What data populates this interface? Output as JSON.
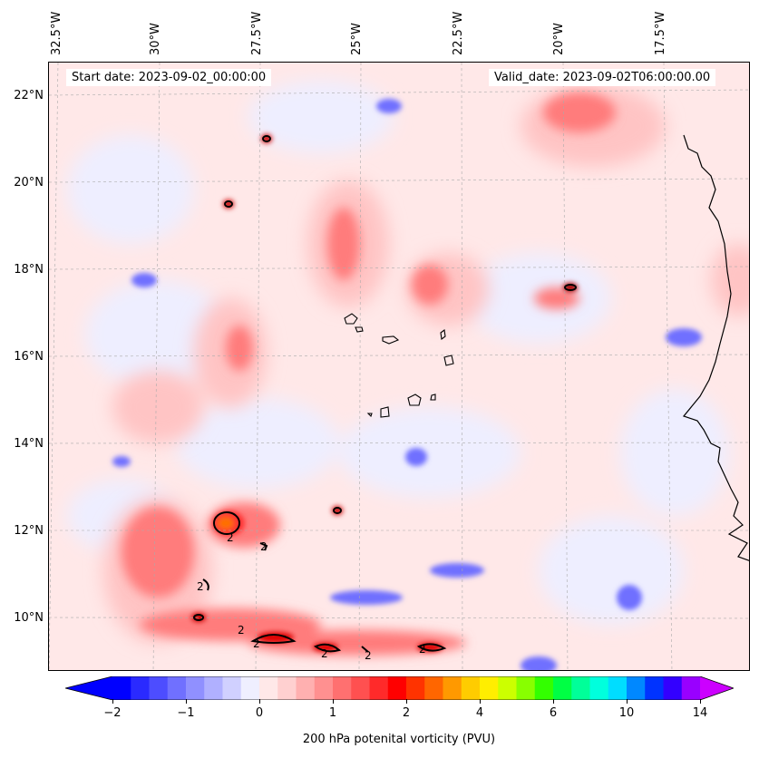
{
  "start_date": "Start date: 2023-09-02_00:00:00",
  "valid_date": "Valid_date: 2023-09-02T06:00:00.00",
  "lon_labels": [
    "32.5°W",
    "30°W",
    "27.5°W",
    "25°W",
    "22.5°W",
    "20°W",
    "17.5°W"
  ],
  "lat_labels": [
    "22°N",
    "20°N",
    "18°N",
    "16°N",
    "14°N",
    "12°N",
    "10°N"
  ],
  "colorbar": {
    "label": "200 hPa potenital vorticity (PVU)",
    "ticks": [
      "−2",
      "−1",
      "0",
      "1",
      "2",
      "4",
      "6",
      "10",
      "14"
    ],
    "colors": [
      "#0000ff",
      "#2a2aff",
      "#4d4dff",
      "#7070ff",
      "#9090ff",
      "#b0b0ff",
      "#d0d0ff",
      "#efefff",
      "#ffe8e8",
      "#ffd0d0",
      "#ffb0b0",
      "#ff9090",
      "#ff7070",
      "#ff5050",
      "#ff2a2a",
      "#ff0000",
      "#ff3300",
      "#ff6600",
      "#ff9900",
      "#ffcc00",
      "#ffee00",
      "#ccff00",
      "#88ff00",
      "#33ff00",
      "#00ff44",
      "#00ff99",
      "#00ffdd",
      "#00ddff",
      "#0088ff",
      "#0033ff",
      "#3300ff",
      "#9900ff"
    ],
    "under_color": "#0000ff",
    "over_color": "#cc00ff"
  },
  "contour_labels": [
    "2",
    "2",
    "2",
    "2",
    "2",
    "2",
    "2",
    "2"
  ]
}
